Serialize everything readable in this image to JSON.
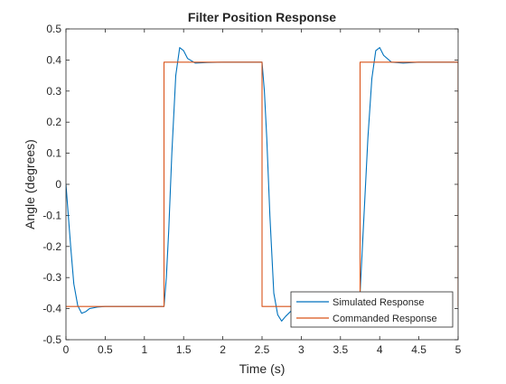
{
  "chart_data": {
    "type": "line",
    "title": "Filter Position Response",
    "xlabel": "Time (s)",
    "ylabel": "Angle (degrees)",
    "xlim": [
      0,
      5
    ],
    "ylim": [
      -0.5,
      0.5
    ],
    "x_ticks": [
      "0",
      "0.5",
      "1",
      "1.5",
      "2",
      "2.5",
      "3",
      "3.5",
      "4",
      "4.5",
      "5"
    ],
    "y_ticks": [
      "-0.5",
      "-0.4",
      "-0.3",
      "-0.2",
      "-0.1",
      "0",
      "0.1",
      "0.2",
      "0.3",
      "0.4",
      "0.5"
    ],
    "grid": false,
    "legend_position": "bottom-right",
    "series": [
      {
        "name": "Simulated Response",
        "color": "#0072BD",
        "x": [
          0,
          0.03,
          0.06,
          0.1,
          0.15,
          0.2,
          0.25,
          0.3,
          0.4,
          0.5,
          0.6,
          1.0,
          1.25,
          1.28,
          1.31,
          1.35,
          1.4,
          1.45,
          1.5,
          1.55,
          1.65,
          1.8,
          2.0,
          2.5,
          2.53,
          2.56,
          2.6,
          2.65,
          2.7,
          2.75,
          2.8,
          2.9,
          3.05,
          3.2,
          3.5,
          3.73,
          3.75,
          3.78,
          3.81,
          3.85,
          3.9,
          3.95,
          4.0,
          4.05,
          4.15,
          4.3,
          4.5,
          5.0
        ],
        "y": [
          0.0,
          -0.1,
          -0.2,
          -0.32,
          -0.39,
          -0.415,
          -0.41,
          -0.4,
          -0.395,
          -0.393,
          -0.393,
          -0.393,
          -0.393,
          -0.3,
          -0.15,
          0.1,
          0.35,
          0.44,
          0.43,
          0.405,
          0.39,
          0.392,
          0.393,
          0.393,
          0.3,
          0.15,
          -0.1,
          -0.35,
          -0.42,
          -0.44,
          -0.425,
          -0.4,
          -0.392,
          -0.393,
          -0.393,
          -0.393,
          -0.35,
          -0.2,
          -0.05,
          0.15,
          0.34,
          0.43,
          0.44,
          0.415,
          0.393,
          0.39,
          0.393,
          0.393
        ]
      },
      {
        "name": "Commanded Response",
        "color": "#D95319",
        "x": [
          0,
          1.25,
          1.25,
          2.5,
          2.5,
          3.75,
          3.75,
          5.0,
          5.0
        ],
        "y": [
          -0.393,
          -0.393,
          0.393,
          0.393,
          -0.393,
          -0.393,
          0.393,
          0.393,
          -0.393
        ]
      }
    ]
  }
}
